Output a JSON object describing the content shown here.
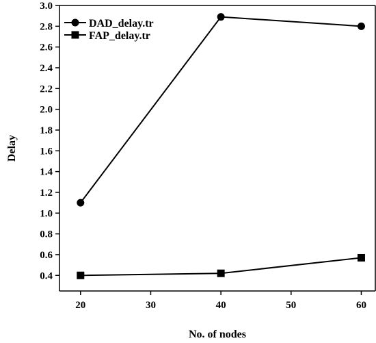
{
  "chart_data": {
    "type": "line",
    "x": [
      20,
      40,
      60
    ],
    "xlabel": "No. of nodes",
    "ylabel": "Delay",
    "xlim": [
      17,
      62
    ],
    "ylim": [
      0.25,
      3.0
    ],
    "xticks": [
      "20",
      "30",
      "40",
      "50",
      "60"
    ],
    "yticks": [
      "0.4",
      "0.6",
      "0.8",
      "1.0",
      "1.2",
      "1.4",
      "1.6",
      "1.8",
      "2.0",
      "2.2",
      "2.4",
      "2.6",
      "2.8",
      "3.0"
    ],
    "series": [
      {
        "name": "DAD_delay.tr",
        "marker": "circle",
        "values": [
          1.1,
          2.89,
          2.8
        ]
      },
      {
        "name": "FAP_delay.tr",
        "marker": "square",
        "values": [
          0.4,
          0.42,
          0.57
        ]
      }
    ],
    "legend_position": "top-left",
    "grid": false
  }
}
